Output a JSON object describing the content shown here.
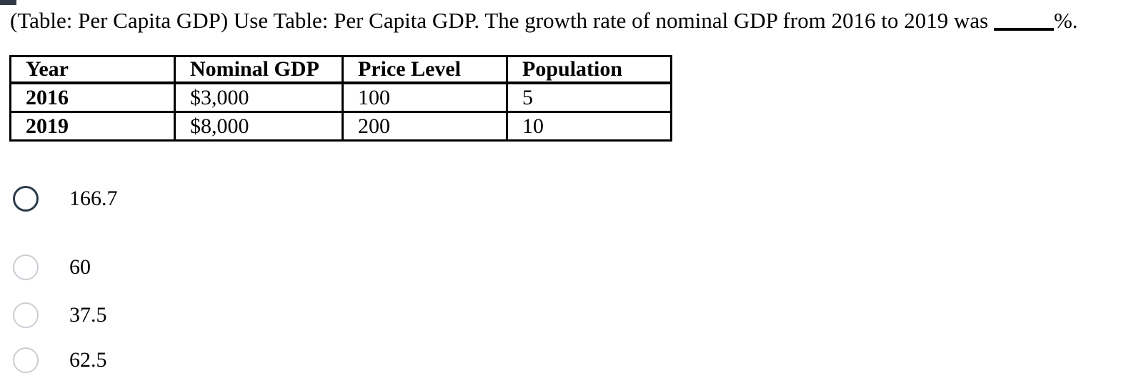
{
  "question": {
    "text_before_blank": "(Table: Per Capita GDP) Use Table: Per Capita GDP. The growth rate of nominal GDP from 2016 to 2019 was",
    "text_after_blank": "%."
  },
  "table": {
    "headers": [
      "Year",
      "Nominal GDP",
      "Price Level",
      "Population"
    ],
    "rows": [
      [
        "2016",
        "$3,000",
        "100",
        "5"
      ],
      [
        "2019",
        "$8,000",
        "200",
        "10"
      ]
    ]
  },
  "options": [
    {
      "label": "166.7",
      "state": "focused"
    },
    {
      "label": "60",
      "state": "default"
    },
    {
      "label": "37.5",
      "state": "default"
    },
    {
      "label": "62.5",
      "state": "default"
    }
  ],
  "colors": {
    "text": "#000000",
    "table_border": "#000000",
    "radio_focused_border": "#2c3b49",
    "radio_default_border": "#c9ced4",
    "corner_marker": "#2f3a44",
    "background": "#ffffff"
  }
}
